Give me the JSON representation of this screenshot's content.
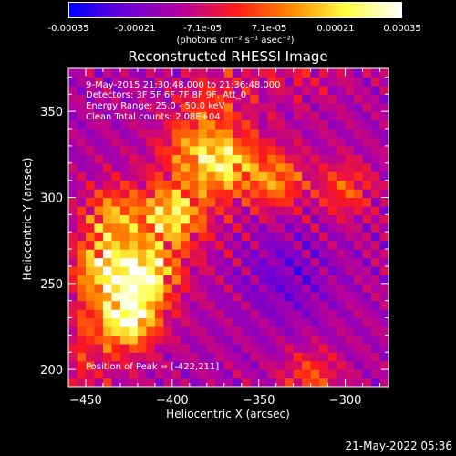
{
  "colorbar": {
    "ticks": [
      "-0.00035",
      "-0.00021",
      "-7.1e-05",
      "7.1e-05",
      "0.00021",
      "0.00035"
    ],
    "units": "(photons cm⁻² s⁻¹ asec⁻²)",
    "range": [
      -0.00035,
      0.00035
    ],
    "stops": [
      "#0000ff",
      "#6a00d8",
      "#b300a0",
      "#ff1a1a",
      "#ff8800",
      "#ffff40",
      "#ffffff"
    ]
  },
  "annotations": {
    "time": "9-May-2015 21:30:48.000 to 21:36:48.000",
    "detectors": "Detectors: 3F 5F 6F 7F 8F 9F, Att_0",
    "energy": "Energy Range: 25.0 - 50.0 keV",
    "clean": "Clean     Total counts: 2.08E+04",
    "peak": "Position of Peak = [-422,211]"
  },
  "footer": {
    "timestamp": "21-May-2022 05:36"
  },
  "chart_data": {
    "type": "heatmap",
    "title": "Reconstructed RHESSI Image",
    "xlabel": "Heliocentric X (arcsec)",
    "ylabel": "Heliocentric Y (arcsec)",
    "xlim": [
      -460,
      -275
    ],
    "ylim": [
      190,
      375
    ],
    "xticks": [
      -450,
      -400,
      -350,
      -300
    ],
    "yticks": [
      200,
      250,
      300,
      350
    ],
    "peak": [
      -422,
      211
    ],
    "bright_regions": [
      {
        "x": -425,
        "y": 230,
        "level": 0.95
      },
      {
        "x": -415,
        "y": 255,
        "level": 0.85
      },
      {
        "x": -440,
        "y": 260,
        "level": 0.8
      },
      {
        "x": -435,
        "y": 290,
        "level": 0.7
      },
      {
        "x": -400,
        "y": 290,
        "level": 0.75
      },
      {
        "x": -370,
        "y": 320,
        "level": 0.75
      },
      {
        "x": -340,
        "y": 310,
        "level": 0.7
      },
      {
        "x": -390,
        "y": 330,
        "level": 0.55
      },
      {
        "x": -380,
        "y": 355,
        "level": 0.45
      },
      {
        "x": -300,
        "y": 305,
        "level": 0.6
      },
      {
        "x": -320,
        "y": 195,
        "level": 0.6
      }
    ]
  }
}
